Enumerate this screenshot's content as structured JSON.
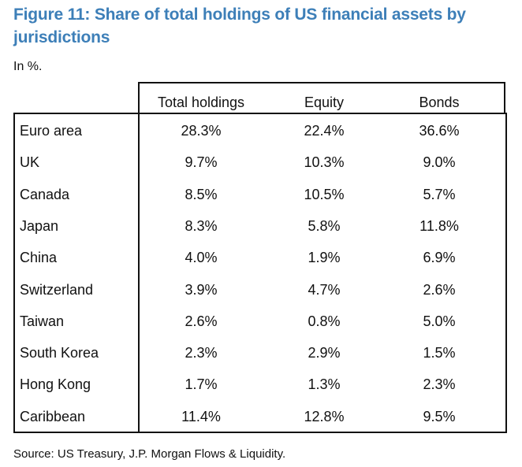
{
  "title": "Figure 11: Share of total holdings of US financial assets by jurisdictions",
  "unit_note": "In %.",
  "source": "Source: US Treasury, J.P. Morgan Flows & Liquidity.",
  "colors": {
    "title": "#3d7fb8",
    "text": "#111111",
    "border": "#111111"
  },
  "chart_data": {
    "type": "table",
    "title": "Figure 11: Share of total holdings of US financial assets by jurisdictions",
    "columns": [
      "Total holdings",
      "Equity",
      "Bonds"
    ],
    "rows": [
      {
        "label": "Euro area",
        "values": [
          "28.3%",
          "22.4%",
          "36.6%"
        ]
      },
      {
        "label": "UK",
        "values": [
          "9.7%",
          "10.3%",
          "9.0%"
        ]
      },
      {
        "label": "Canada",
        "values": [
          "8.5%",
          "10.5%",
          "5.7%"
        ]
      },
      {
        "label": "Japan",
        "values": [
          "8.3%",
          "5.8%",
          "11.8%"
        ]
      },
      {
        "label": "China",
        "values": [
          "4.0%",
          "1.9%",
          "6.9%"
        ]
      },
      {
        "label": "Switzerland",
        "values": [
          "3.9%",
          "4.7%",
          "2.6%"
        ]
      },
      {
        "label": "Taiwan",
        "values": [
          "2.6%",
          "0.8%",
          "5.0%"
        ]
      },
      {
        "label": "South Korea",
        "values": [
          "2.3%",
          "2.9%",
          "1.5%"
        ]
      },
      {
        "label": "Hong Kong",
        "values": [
          "1.7%",
          "1.3%",
          "2.3%"
        ]
      },
      {
        "label": "Caribbean",
        "values": [
          "11.4%",
          "12.8%",
          "9.5%"
        ]
      }
    ]
  }
}
